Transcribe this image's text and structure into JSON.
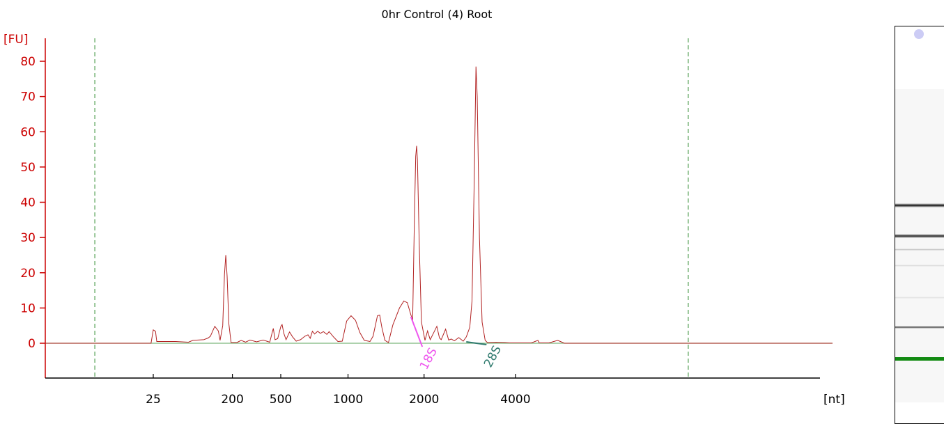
{
  "colors": {
    "axis": "#cc0000",
    "trace": "#b22222",
    "baseline": "#7cb87c",
    "marker_18S": "#ee55ee",
    "marker_28S": "#2f7a6e",
    "dashed": "#2e8b2e",
    "gel_marker_band": "#128a12"
  },
  "chart_data": {
    "type": "line",
    "title": "0hr Control (4) Root",
    "ylabel": "[FU]",
    "xlabel": "[nt]",
    "ylim": [
      -10,
      85
    ],
    "y_ticks": [
      0,
      10,
      20,
      30,
      40,
      50,
      60,
      70,
      80
    ],
    "x_ticks": [
      {
        "label": "25",
        "t": 0
      },
      {
        "label": "200",
        "t": 0.18
      },
      {
        "label": "500",
        "t": 0.29
      },
      {
        "label": "1000",
        "t": 0.443
      },
      {
        "label": "2000",
        "t": 0.616
      },
      {
        "label": "4000",
        "t": 0.824
      }
    ],
    "x_domain_t": [
      -0.198,
      1.1
    ],
    "dashed_lines_t": [
      -0.133,
      1.217
    ],
    "grid": false,
    "series": [
      {
        "values": [
          [
            -0.005,
            0
          ],
          [
            0.0,
            3.8
          ],
          [
            0.005,
            3.4
          ],
          [
            0.008,
            0.5
          ],
          [
            0.05,
            0.5
          ],
          [
            0.08,
            0.3
          ],
          [
            0.09,
            0.8
          ],
          [
            0.115,
            1.0
          ],
          [
            0.125,
            1.5
          ],
          [
            0.13,
            2.0
          ],
          [
            0.14,
            4.8
          ],
          [
            0.148,
            3.5
          ],
          [
            0.152,
            0.8
          ],
          [
            0.158,
            5.0
          ],
          [
            0.162,
            19.5
          ],
          [
            0.165,
            25.0
          ],
          [
            0.168,
            19.0
          ],
          [
            0.172,
            5.5
          ],
          [
            0.177,
            0.2
          ],
          [
            0.19,
            0.2
          ],
          [
            0.2,
            0.8
          ],
          [
            0.21,
            0.3
          ],
          [
            0.22,
            0.9
          ],
          [
            0.235,
            0.4
          ],
          [
            0.25,
            0.9
          ],
          [
            0.265,
            0.3
          ],
          [
            0.27,
            2.8
          ],
          [
            0.273,
            4.2
          ],
          [
            0.277,
            1.0
          ],
          [
            0.283,
            1.3
          ],
          [
            0.29,
            4.7
          ],
          [
            0.293,
            5.3
          ],
          [
            0.297,
            2.8
          ],
          [
            0.302,
            1.0
          ],
          [
            0.31,
            3.2
          ],
          [
            0.317,
            1.8
          ],
          [
            0.325,
            0.6
          ],
          [
            0.335,
            1.0
          ],
          [
            0.345,
            2.0
          ],
          [
            0.352,
            2.4
          ],
          [
            0.357,
            1.4
          ],
          [
            0.362,
            3.4
          ],
          [
            0.367,
            2.6
          ],
          [
            0.374,
            3.4
          ],
          [
            0.38,
            2.8
          ],
          [
            0.387,
            3.3
          ],
          [
            0.395,
            2.5
          ],
          [
            0.4,
            3.3
          ],
          [
            0.41,
            1.8
          ],
          [
            0.42,
            0.5
          ],
          [
            0.43,
            0.6
          ],
          [
            0.44,
            6.3
          ],
          [
            0.45,
            7.8
          ],
          [
            0.46,
            6.5
          ],
          [
            0.47,
            3.0
          ],
          [
            0.48,
            0.8
          ],
          [
            0.493,
            0.5
          ],
          [
            0.5,
            2.0
          ],
          [
            0.51,
            7.8
          ],
          [
            0.515,
            8.0
          ],
          [
            0.52,
            4.5
          ],
          [
            0.527,
            0.8
          ],
          [
            0.535,
            0.2
          ],
          [
            0.545,
            5.2
          ],
          [
            0.56,
            10.0
          ],
          [
            0.57,
            12.0
          ],
          [
            0.578,
            11.5
          ],
          [
            0.585,
            8.5
          ],
          [
            0.59,
            6.5
          ],
          [
            0.594,
            35.0
          ],
          [
            0.597,
            53.0
          ],
          [
            0.599,
            56.0
          ],
          [
            0.601,
            52.0
          ],
          [
            0.605,
            28.0
          ],
          [
            0.61,
            6.0
          ],
          [
            0.618,
            0.8
          ],
          [
            0.624,
            3.5
          ],
          [
            0.63,
            1.0
          ],
          [
            0.64,
            3.5
          ],
          [
            0.645,
            4.8
          ],
          [
            0.651,
            1.5
          ],
          [
            0.655,
            1.0
          ],
          [
            0.665,
            4.0
          ],
          [
            0.672,
            0.9
          ],
          [
            0.678,
            1.2
          ],
          [
            0.685,
            0.7
          ],
          [
            0.695,
            1.6
          ],
          [
            0.705,
            0.6
          ],
          [
            0.712,
            1.8
          ],
          [
            0.72,
            4.5
          ],
          [
            0.725,
            12.0
          ],
          [
            0.73,
            45.0
          ],
          [
            0.734,
            78.5
          ],
          [
            0.737,
            70.0
          ],
          [
            0.742,
            30.0
          ],
          [
            0.748,
            6.0
          ],
          [
            0.755,
            0.8
          ],
          [
            0.76,
            0.2
          ],
          [
            0.78,
            0.3
          ],
          [
            0.8,
            0.2
          ],
          [
            0.81,
            0.1
          ],
          [
            0.83,
            0.1
          ],
          [
            0.86,
            0.1
          ],
          [
            0.875,
            0.8
          ],
          [
            0.878,
            0.1
          ],
          [
            0.9,
            0.1
          ],
          [
            0.92,
            0.8
          ],
          [
            0.928,
            0.4
          ],
          [
            0.935,
            0.0
          ]
        ]
      }
    ],
    "annotations": [
      {
        "label": "18S",
        "color": "#ee55ee"
      },
      {
        "label": "28S",
        "color": "#2f7a6e"
      }
    ]
  },
  "gel": {
    "bands": [
      {
        "y": 0.446,
        "darkness": 0.95,
        "height": 6
      },
      {
        "y": 0.522,
        "darkness": 0.85,
        "height": 6
      },
      {
        "y": 0.56,
        "darkness": 0.25,
        "height": 3
      },
      {
        "y": 0.6,
        "darkness": 0.15,
        "height": 3
      },
      {
        "y": 0.68,
        "darkness": 0.12,
        "height": 3
      },
      {
        "y": 0.755,
        "darkness": 0.7,
        "height": 4
      }
    ],
    "marker_band_y": 0.833
  }
}
